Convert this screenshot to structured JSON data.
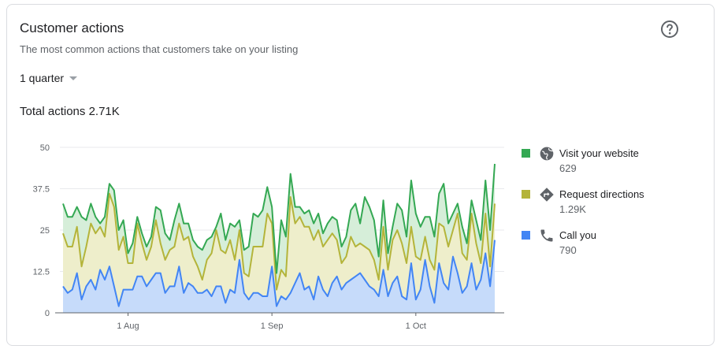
{
  "card": {
    "title": "Customer actions",
    "subtitle": "The most common actions that customers take on your listing",
    "period": "1 quarter",
    "total_label": "Total actions",
    "total_value": "2.71K",
    "help_icon": "help-circle-icon"
  },
  "colors": {
    "website_line": "#34a853",
    "website_fill": "#d6eed9",
    "directions_line": "#b4b43a",
    "directions_fill": "#eeeecb",
    "call_line": "#4285f4",
    "call_fill": "#c6dbfa",
    "grid": "#e8eaed",
    "axis": "#5f6368"
  },
  "legend": [
    {
      "name": "Visit your website",
      "value": "629",
      "icon": "globe-icon",
      "color": "#34a853"
    },
    {
      "name": "Request directions",
      "value": "1.29K",
      "icon": "directions-icon",
      "color": "#b4b43a"
    },
    {
      "name": "Call you",
      "value": "790",
      "icon": "phone-icon",
      "color": "#4285f4"
    }
  ],
  "chart_data": {
    "type": "area",
    "stacked": true,
    "ylim": [
      0,
      50
    ],
    "y_ticks": [
      0,
      12.5,
      25,
      37.5,
      50
    ],
    "y_tick_labels": [
      "0",
      "12.5",
      "25",
      "37.5",
      "50"
    ],
    "x_tick_labels": [
      "1 Aug",
      "1 Sep",
      "1 Oct"
    ],
    "x_tick_index": [
      14,
      45,
      76
    ],
    "grid": true,
    "legend_position": "right",
    "series": [
      {
        "name": "Call you",
        "values": [
          8,
          6,
          7,
          12,
          4,
          8,
          10,
          7,
          13,
          10,
          14,
          8,
          2,
          7,
          7,
          7,
          11,
          11,
          8,
          10,
          12,
          12,
          6,
          8,
          8,
          14,
          6,
          9,
          8,
          6,
          6,
          7,
          5,
          8,
          8,
          3,
          7,
          6,
          16,
          6,
          4,
          6,
          6,
          5,
          5,
          14,
          2,
          5,
          4,
          6,
          9,
          12,
          7,
          8,
          4,
          11,
          7,
          5,
          9,
          11,
          7,
          9,
          10,
          11,
          12,
          10,
          8,
          7,
          5,
          13,
          5,
          9,
          11,
          5,
          4,
          15,
          4,
          7,
          16,
          8,
          3,
          15,
          9,
          7,
          17,
          12,
          6,
          8,
          15,
          7,
          10,
          18,
          8,
          22
        ]
      },
      {
        "name": "Request directions",
        "values": [
          16,
          14,
          13,
          14,
          10,
          12,
          17,
          17,
          13,
          13,
          22,
          24,
          17,
          16,
          8,
          8,
          16,
          10,
          8,
          10,
          16,
          9,
          10,
          11,
          12,
          13,
          16,
          14,
          9,
          8,
          4,
          9,
          13,
          17,
          11,
          15,
          15,
          10,
          9,
          6,
          7,
          14,
          14,
          15,
          25,
          13,
          5,
          8,
          7,
          29,
          18,
          17,
          19,
          18,
          18,
          14,
          13,
          17,
          15,
          11,
          8,
          8,
          13,
          9,
          9,
          10,
          11,
          9,
          5,
          13,
          8,
          13,
          14,
          16,
          11,
          11,
          13,
          9,
          7,
          8,
          10,
          12,
          17,
          13,
          8,
          18,
          12,
          8,
          15,
          14,
          5,
          12,
          6,
          11
        ]
      },
      {
        "name": "Visit your website",
        "values": [
          9,
          9,
          9,
          6,
          15,
          8,
          6,
          5,
          1,
          6,
          3,
          5,
          6,
          5,
          3,
          6,
          2,
          3,
          4,
          3,
          4,
          10,
          8,
          3,
          8,
          6,
          5,
          4,
          5,
          6,
          9,
          6,
          5,
          1,
          11,
          4,
          5,
          10,
          3,
          7,
          9,
          10,
          9,
          11,
          8,
          5,
          5,
          15,
          12,
          7,
          5,
          3,
          4,
          5,
          5,
          5,
          4,
          5,
          5,
          6,
          5,
          6,
          8,
          13,
          6,
          15,
          13,
          12,
          7,
          8,
          5,
          4,
          8,
          10,
          8,
          14,
          13,
          10,
          6,
          13,
          10,
          9,
          13,
          7,
          5,
          3,
          8,
          5,
          4,
          7,
          7,
          10,
          11,
          12
        ]
      }
    ]
  }
}
